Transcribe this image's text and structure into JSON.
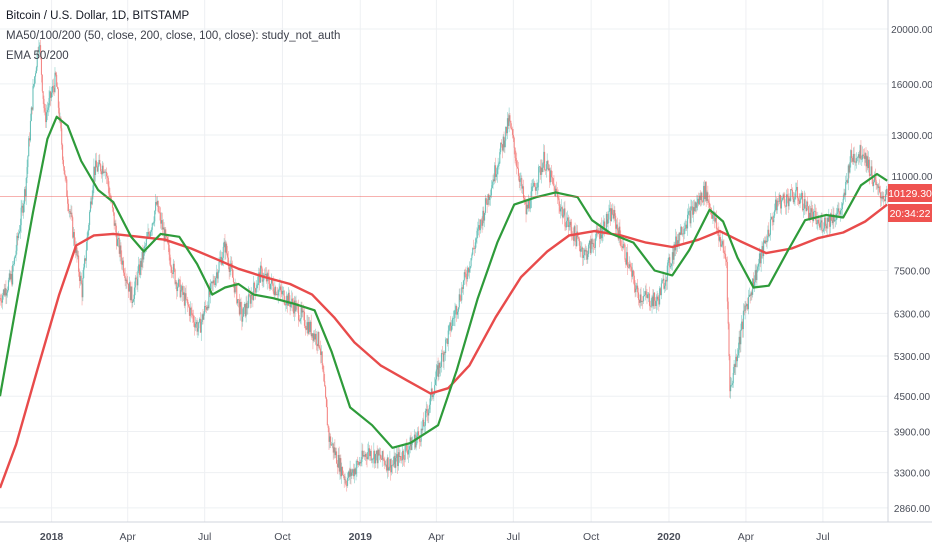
{
  "legend": {
    "symbol": "Bitcoin / U.S. Dollar, 1D, BITSTAMP",
    "study1": "MA50/100/200 (50, close, 200, close, 100, close): study_not_auth",
    "study2": "EMA 50/200"
  },
  "price_tag": {
    "value": "10129.30",
    "countdown": "20:34:22",
    "color": "#ef5350"
  },
  "colors": {
    "ma50": "#2e9b3a",
    "ma200": "#e84b4b",
    "up": "#26a69a",
    "down": "#ef5350",
    "grid": "#eef0f3"
  },
  "chart_data": {
    "type": "line",
    "y_scale": "log",
    "ylim": [
      2700,
      22500
    ],
    "xlim": [
      "2017-11-01",
      "2020-09-16"
    ],
    "y_ticks": [
      20000,
      16000,
      13000,
      11000,
      7500,
      6300,
      5300,
      4500,
      3900,
      3300,
      2860
    ],
    "y_tick_labels": [
      "20000.00",
      "16000.00",
      "13000.00",
      "11000.00",
      "7500.00",
      "6300.00",
      "5300.00",
      "4500.00",
      "3900.00",
      "3300.00",
      "2860.00"
    ],
    "x_ticks": [
      {
        "date": "2018-01-01",
        "label": "2018",
        "bold": true
      },
      {
        "date": "2018-04-01",
        "label": "Apr",
        "bold": false
      },
      {
        "date": "2018-07-01",
        "label": "Jul",
        "bold": false
      },
      {
        "date": "2018-10-01",
        "label": "Oct",
        "bold": false
      },
      {
        "date": "2019-01-01",
        "label": "2019",
        "bold": true
      },
      {
        "date": "2019-04-01",
        "label": "Apr",
        "bold": false
      },
      {
        "date": "2019-07-01",
        "label": "Jul",
        "bold": false
      },
      {
        "date": "2019-10-01",
        "label": "Oct",
        "bold": false
      },
      {
        "date": "2020-01-01",
        "label": "2020",
        "bold": true
      },
      {
        "date": "2020-04-01",
        "label": "Apr",
        "bold": false
      },
      {
        "date": "2020-07-01",
        "label": "Jul",
        "bold": false
      }
    ],
    "series": [
      {
        "key": "price",
        "points": [
          [
            "2017-11-01",
            6700
          ],
          [
            "2017-11-15",
            7300
          ],
          [
            "2017-12-01",
            10500
          ],
          [
            "2017-12-10",
            15500
          ],
          [
            "2017-12-17",
            19300
          ],
          [
            "2017-12-24",
            13900
          ],
          [
            "2018-01-06",
            16400
          ],
          [
            "2018-01-17",
            10800
          ],
          [
            "2018-02-06",
            6900
          ],
          [
            "2018-02-20",
            11300
          ],
          [
            "2018-03-05",
            11500
          ],
          [
            "2018-03-20",
            8400
          ],
          [
            "2018-04-06",
            6700
          ],
          [
            "2018-05-05",
            9800
          ],
          [
            "2018-05-28",
            7200
          ],
          [
            "2018-06-24",
            5900
          ],
          [
            "2018-07-25",
            8300
          ],
          [
            "2018-08-14",
            6200
          ],
          [
            "2018-09-05",
            7400
          ],
          [
            "2018-10-15",
            6500
          ],
          [
            "2018-11-14",
            5600
          ],
          [
            "2018-11-25",
            3800
          ],
          [
            "2018-12-15",
            3200
          ],
          [
            "2019-01-10",
            3600
          ],
          [
            "2019-02-08",
            3400
          ],
          [
            "2019-03-15",
            3900
          ],
          [
            "2019-04-03",
            5000
          ],
          [
            "2019-05-14",
            8100
          ],
          [
            "2019-06-26",
            13800
          ],
          [
            "2019-07-16",
            9500
          ],
          [
            "2019-08-06",
            11800
          ],
          [
            "2019-08-29",
            9400
          ],
          [
            "2019-09-24",
            8000
          ],
          [
            "2019-10-26",
            9500
          ],
          [
            "2019-11-25",
            6800
          ],
          [
            "2019-12-18",
            6600
          ],
          [
            "2020-01-14",
            8800
          ],
          [
            "2020-02-13",
            10400
          ],
          [
            "2020-03-09",
            7800
          ],
          [
            "2020-03-13",
            4600
          ],
          [
            "2020-03-31",
            6400
          ],
          [
            "2020-05-08",
            9900
          ],
          [
            "2020-06-01",
            10200
          ],
          [
            "2020-06-27",
            9000
          ],
          [
            "2020-07-24",
            9600
          ],
          [
            "2020-08-02",
            11800
          ],
          [
            "2020-08-18",
            12200
          ],
          [
            "2020-09-04",
            10300
          ],
          [
            "2020-09-15",
            10129
          ]
        ]
      },
      {
        "key": "ma50",
        "points": [
          [
            "2017-11-01",
            4500
          ],
          [
            "2017-11-20",
            6500
          ],
          [
            "2017-12-10",
            9500
          ],
          [
            "2017-12-27",
            12800
          ],
          [
            "2018-01-07",
            14000
          ],
          [
            "2018-01-20",
            13500
          ],
          [
            "2018-02-05",
            11700
          ],
          [
            "2018-02-25",
            10400
          ],
          [
            "2018-03-15",
            9900
          ],
          [
            "2018-04-05",
            8600
          ],
          [
            "2018-04-20",
            8100
          ],
          [
            "2018-05-10",
            8700
          ],
          [
            "2018-06-01",
            8600
          ],
          [
            "2018-06-22",
            7700
          ],
          [
            "2018-07-10",
            6800
          ],
          [
            "2018-07-25",
            7000
          ],
          [
            "2018-08-10",
            7100
          ],
          [
            "2018-08-28",
            6800
          ],
          [
            "2018-09-20",
            6700
          ],
          [
            "2018-10-15",
            6550
          ],
          [
            "2018-11-08",
            6380
          ],
          [
            "2018-11-28",
            5400
          ],
          [
            "2018-12-20",
            4300
          ],
          [
            "2019-01-15",
            4000
          ],
          [
            "2019-02-08",
            3650
          ],
          [
            "2019-03-01",
            3720
          ],
          [
            "2019-04-03",
            4000
          ],
          [
            "2019-04-25",
            5000
          ],
          [
            "2019-05-20",
            6700
          ],
          [
            "2019-06-12",
            8400
          ],
          [
            "2019-07-02",
            9800
          ],
          [
            "2019-07-28",
            10100
          ],
          [
            "2019-08-20",
            10300
          ],
          [
            "2019-09-15",
            10100
          ],
          [
            "2019-10-02",
            9200
          ],
          [
            "2019-10-25",
            8700
          ],
          [
            "2019-11-20",
            8400
          ],
          [
            "2019-12-15",
            7500
          ],
          [
            "2020-01-05",
            7350
          ],
          [
            "2020-01-25",
            8150
          ],
          [
            "2020-02-18",
            9600
          ],
          [
            "2020-03-05",
            9150
          ],
          [
            "2020-03-22",
            7900
          ],
          [
            "2020-04-10",
            7000
          ],
          [
            "2020-04-28",
            7050
          ],
          [
            "2020-05-20",
            8100
          ],
          [
            "2020-06-10",
            9200
          ],
          [
            "2020-07-05",
            9400
          ],
          [
            "2020-07-25",
            9300
          ],
          [
            "2020-08-15",
            10600
          ],
          [
            "2020-09-03",
            11100
          ],
          [
            "2020-09-15",
            10800
          ]
        ]
      },
      {
        "key": "ma200",
        "points": [
          [
            "2017-11-01",
            3100
          ],
          [
            "2017-11-20",
            3700
          ],
          [
            "2017-12-15",
            5000
          ],
          [
            "2018-01-10",
            6800
          ],
          [
            "2018-01-30",
            8300
          ],
          [
            "2018-02-20",
            8650
          ],
          [
            "2018-03-15",
            8700
          ],
          [
            "2018-04-15",
            8600
          ],
          [
            "2018-05-15",
            8500
          ],
          [
            "2018-06-15",
            8200
          ],
          [
            "2018-07-15",
            7850
          ],
          [
            "2018-08-10",
            7550
          ],
          [
            "2018-09-10",
            7300
          ],
          [
            "2018-10-10",
            7100
          ],
          [
            "2018-11-05",
            6800
          ],
          [
            "2018-12-01",
            6200
          ],
          [
            "2018-12-25",
            5600
          ],
          [
            "2019-01-25",
            5100
          ],
          [
            "2019-02-25",
            4800
          ],
          [
            "2019-03-25",
            4550
          ],
          [
            "2019-04-15",
            4650
          ],
          [
            "2019-05-10",
            5100
          ],
          [
            "2019-06-10",
            6200
          ],
          [
            "2019-07-10",
            7300
          ],
          [
            "2019-08-10",
            8100
          ],
          [
            "2019-09-05",
            8650
          ],
          [
            "2019-10-05",
            8800
          ],
          [
            "2019-11-05",
            8650
          ],
          [
            "2019-12-05",
            8400
          ],
          [
            "2020-01-05",
            8250
          ],
          [
            "2020-02-05",
            8500
          ],
          [
            "2020-03-01",
            8800
          ],
          [
            "2020-03-25",
            8450
          ],
          [
            "2020-04-25",
            8050
          ],
          [
            "2020-05-25",
            8200
          ],
          [
            "2020-06-25",
            8550
          ],
          [
            "2020-07-25",
            8750
          ],
          [
            "2020-08-20",
            9150
          ],
          [
            "2020-09-15",
            9800
          ]
        ]
      }
    ]
  }
}
